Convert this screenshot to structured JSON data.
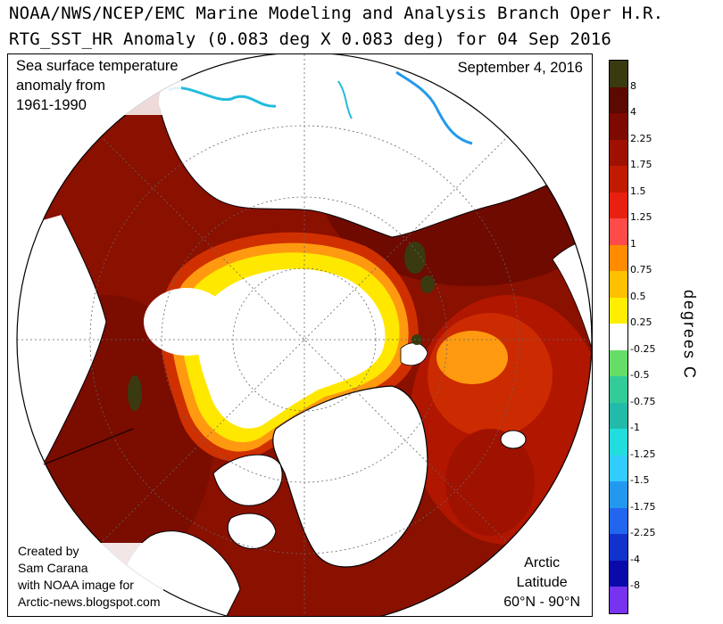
{
  "header": {
    "line1": "NOAA/NWS/NCEP/EMC Marine Modeling and Analysis Branch Oper H.R.",
    "line2": "RTG_SST_HR Anomaly (0.083 deg X 0.083 deg) for 04 Sep 2016"
  },
  "map": {
    "title_lines": [
      "Sea surface temperature",
      "anomaly from",
      "1961-1990"
    ],
    "date": "September 4, 2016",
    "credit_lines": [
      "Created by",
      "Sam Carana",
      "with NOAA image for",
      "Arctic-news.blogspot.com"
    ],
    "region_lines": [
      "Arctic",
      "Latitude",
      "60°N - 90°N"
    ]
  },
  "colorbar": {
    "unit": "degrees C",
    "colors": [
      "#3a3a10",
      "#5a0a00",
      "#7c0a00",
      "#9e1000",
      "#c01a00",
      "#e82010",
      "#ff4a4a",
      "#ff8c00",
      "#ffc000",
      "#ffee00",
      "#ffffff",
      "#66dd66",
      "#33cc99",
      "#22bbaa",
      "#22dddd",
      "#33ccff",
      "#2299ee",
      "#2266ee",
      "#1133cc",
      "#0a0aaa",
      "#7733ee"
    ],
    "labels": [
      "8",
      "4",
      "2.25",
      "1.75",
      "1.5",
      "1.25",
      "1",
      "0.75",
      "0.5",
      "0.25",
      "-0.25",
      "-0.5",
      "-0.75",
      "-1",
      "-1.25",
      "-1.5",
      "-1.75",
      "-2.25",
      "-4",
      "-8"
    ]
  }
}
